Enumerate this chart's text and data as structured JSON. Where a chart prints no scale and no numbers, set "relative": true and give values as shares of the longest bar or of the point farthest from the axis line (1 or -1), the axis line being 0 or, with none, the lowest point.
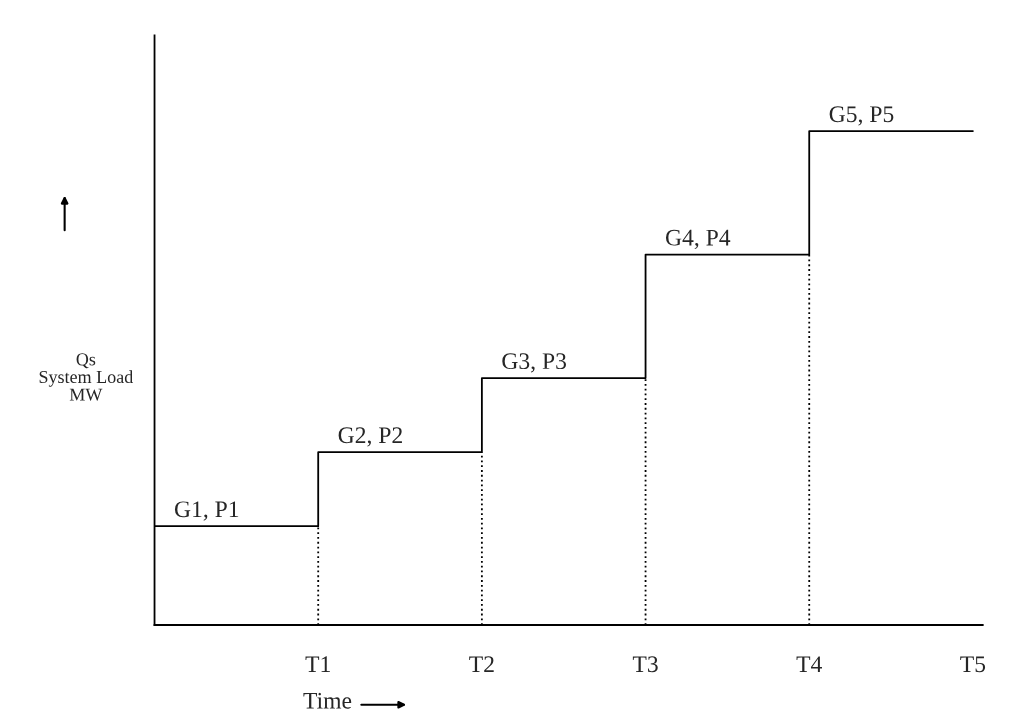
{
  "chart_data": {
    "type": "step",
    "relative": true,
    "xlabel": "Time",
    "ylabel": "Qs\nSystem Load\nMW",
    "categories": [
      null,
      "T1",
      "T2",
      "T3",
      "T4",
      "T5"
    ],
    "series": [
      {
        "color": "#000000",
        "values": [
          0.2,
          0.35,
          0.5,
          0.75,
          1.0,
          1.0
        ]
      }
    ],
    "ref_lines": [
      {
        "axis": "x",
        "value": "T1",
        "line_style": "dotted"
      },
      {
        "axis": "x",
        "value": "T2",
        "line_style": "dotted"
      },
      {
        "axis": "x",
        "value": "T3",
        "line_style": "dotted"
      },
      {
        "axis": "x",
        "value": "T4",
        "line_style": "dotted"
      }
    ],
    "annotations": [
      {
        "text": "G1, P1",
        "y": 0.2
      },
      {
        "text": "G2, P2",
        "x": "T1",
        "y": 0.35
      },
      {
        "text": "G3, P3",
        "x": "T2",
        "y": 0.5
      },
      {
        "text": "G4, P4",
        "x": "T3",
        "y": 0.75
      },
      {
        "text": "G5, P5",
        "x": "T4",
        "y": 1.0
      }
    ],
    "tick_labels": "x"
  }
}
